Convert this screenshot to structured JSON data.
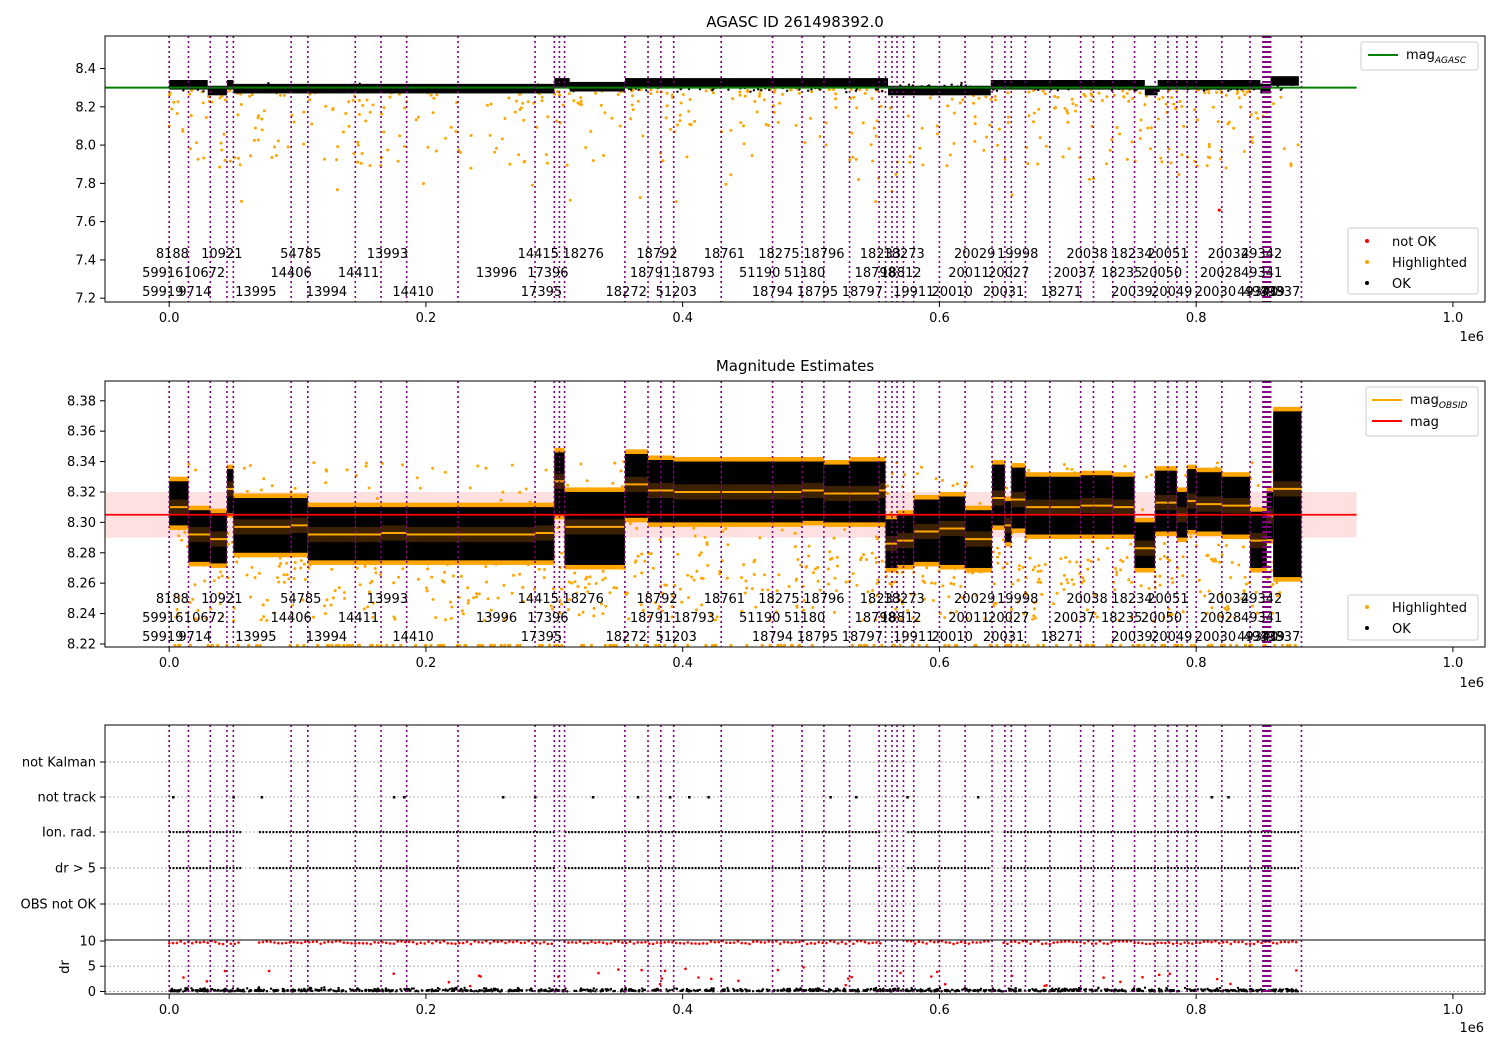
{
  "chart_data": [
    {
      "type": "scatter",
      "title": "AGASC ID 261498392.0",
      "xlim": [
        -50000,
        1025000
      ],
      "ylim": [
        7.18,
        8.57
      ],
      "xticks": [
        0.0,
        0.2,
        0.4,
        0.6,
        0.8,
        1.0
      ],
      "xtick_labels": [
        "0.0",
        "0.2",
        "0.4",
        "0.6",
        "0.8",
        "1.0"
      ],
      "x_offset_label": "1e6",
      "yticks": [
        7.2,
        7.4,
        7.6,
        7.8,
        8.0,
        8.2,
        8.4
      ],
      "ytick_labels": [
        "7.2",
        "7.4",
        "7.6",
        "7.8",
        "8.0",
        "8.2",
        "8.4"
      ],
      "reference_line": {
        "name": "mag",
        "subscript": "AGASC",
        "value": 8.3,
        "color": "#008000",
        "x_end": 925000
      },
      "legend_top": [
        {
          "label": "mag",
          "subscript": "AGASC",
          "color": "#008000",
          "kind": "line"
        }
      ],
      "legend_bottom": [
        {
          "label": "not OK",
          "color": "#ff0000",
          "kind": "dot"
        },
        {
          "label": "Highlighted",
          "color": "#ffa500",
          "kind": "dot"
        },
        {
          "label": "OK",
          "color": "#000000",
          "kind": "dot"
        }
      ],
      "ok_segments": [
        [
          0,
          30000,
          8.32
        ],
        [
          30000,
          45000,
          8.29
        ],
        [
          45000,
          50000,
          8.32
        ],
        [
          50000,
          140000,
          8.3
        ],
        [
          140000,
          300000,
          8.3
        ],
        [
          300000,
          312000,
          8.33
        ],
        [
          312000,
          355000,
          8.31
        ],
        [
          355000,
          560000,
          8.33
        ],
        [
          560000,
          640000,
          8.29
        ],
        [
          640000,
          760000,
          8.32
        ],
        [
          760000,
          770000,
          8.29
        ],
        [
          770000,
          850000,
          8.32
        ],
        [
          850000,
          858000,
          8.3
        ],
        [
          858000,
          880000,
          8.34
        ]
      ],
      "highlighted_spread": [
        7.9,
        8.3
      ],
      "not_ok_points": [
        [
          818000,
          7.66
        ]
      ],
      "obsid_rows": [
        [
          "8188",
          "10921",
          "54785",
          "13993",
          "14415",
          "18276",
          "18792",
          "18761",
          "18275",
          "18796",
          "18233",
          "18273",
          "20029",
          "19998",
          "20038",
          "18234",
          "20051",
          "20032",
          "49342"
        ],
        [
          "59916",
          "10672",
          "14406",
          "14411",
          "13996",
          "17396",
          "18791",
          "18793",
          "51190",
          "51180",
          "18798",
          "18812",
          "20011",
          "20027",
          "20037",
          "18235",
          "20050",
          "20028",
          "49341"
        ],
        [
          "59919",
          "9714",
          "13995",
          "13994",
          "14410",
          "17395",
          "18272",
          "51203",
          "18794",
          "18795",
          "18797",
          "19911",
          "20010",
          "20031",
          "18271",
          "20039",
          "20049",
          "20030",
          "49340",
          "49339",
          "49337"
        ]
      ]
    },
    {
      "type": "scatter",
      "title": "Magnitude Estimates",
      "xlim": [
        -50000,
        1025000
      ],
      "ylim": [
        8.218,
        8.393
      ],
      "xticks": [
        0.0,
        0.2,
        0.4,
        0.6,
        0.8,
        1.0
      ],
      "xtick_labels": [
        "0.0",
        "0.2",
        "0.4",
        "0.6",
        "0.8",
        "1.0"
      ],
      "x_offset_label": "1e6",
      "yticks": [
        8.22,
        8.24,
        8.26,
        8.28,
        8.3,
        8.32,
        8.34,
        8.36,
        8.38
      ],
      "ytick_labels": [
        "8.22",
        "8.24",
        "8.26",
        "8.28",
        "8.30",
        "8.32",
        "8.34",
        "8.36",
        "8.38"
      ],
      "mag_line": {
        "label": "mag",
        "value": 8.305,
        "band": [
          8.29,
          8.32
        ],
        "color": "#ff0000",
        "x_end": 925000
      },
      "legend_top": [
        {
          "label": "mag",
          "subscript": "OBSID",
          "color": "#ffa500",
          "kind": "line"
        },
        {
          "label": "mag",
          "color": "#ff0000",
          "kind": "line"
        }
      ],
      "legend_bottom": [
        {
          "label": "Highlighted",
          "color": "#ffa500",
          "kind": "dot"
        },
        {
          "label": "OK",
          "color": "#000000",
          "kind": "dot"
        }
      ],
      "obsid_segments": [
        [
          0,
          15000,
          8.31,
          8.298,
          8.327
        ],
        [
          15000,
          32000,
          8.292,
          8.274,
          8.308
        ],
        [
          32000,
          45000,
          8.289,
          8.273,
          8.306
        ],
        [
          45000,
          50000,
          8.322,
          8.306,
          8.335
        ],
        [
          50000,
          95000,
          8.297,
          8.28,
          8.316
        ],
        [
          95000,
          108000,
          8.298,
          8.28,
          8.316
        ],
        [
          108000,
          145000,
          8.292,
          8.275,
          8.31
        ],
        [
          145000,
          165000,
          8.292,
          8.275,
          8.31
        ],
        [
          165000,
          185000,
          8.293,
          8.275,
          8.31
        ],
        [
          185000,
          225000,
          8.292,
          8.275,
          8.31
        ],
        [
          225000,
          285000,
          8.292,
          8.275,
          8.31
        ],
        [
          285000,
          300000,
          8.293,
          8.275,
          8.31
        ],
        [
          300000,
          308000,
          8.327,
          8.305,
          8.346
        ],
        [
          308000,
          355000,
          8.297,
          8.272,
          8.32
        ],
        [
          355000,
          373000,
          8.325,
          8.303,
          8.345
        ],
        [
          373000,
          393000,
          8.321,
          8.3,
          8.341
        ],
        [
          393000,
          430000,
          8.32,
          8.3,
          8.34
        ],
        [
          430000,
          470000,
          8.32,
          8.3,
          8.34
        ],
        [
          470000,
          493000,
          8.32,
          8.3,
          8.34
        ],
        [
          493000,
          510000,
          8.321,
          8.301,
          8.34
        ],
        [
          510000,
          530000,
          8.319,
          8.3,
          8.338
        ],
        [
          530000,
          553000,
          8.319,
          8.3,
          8.34
        ],
        [
          553000,
          558000,
          8.321,
          8.3,
          8.34
        ],
        [
          558000,
          567000,
          8.286,
          8.27,
          8.302
        ],
        [
          567000,
          580000,
          8.288,
          8.272,
          8.305
        ],
        [
          580000,
          600000,
          8.294,
          8.274,
          8.315
        ],
        [
          600000,
          620000,
          8.296,
          8.272,
          8.317
        ],
        [
          620000,
          641000,
          8.289,
          8.27,
          8.308
        ],
        [
          641000,
          651000,
          8.316,
          8.298,
          8.338
        ],
        [
          651000,
          656000,
          8.298,
          8.287,
          8.314
        ],
        [
          656000,
          667000,
          8.315,
          8.296,
          8.336
        ],
        [
          667000,
          686000,
          8.31,
          8.292,
          8.33
        ],
        [
          686000,
          710000,
          8.31,
          8.292,
          8.33
        ],
        [
          710000,
          735000,
          8.311,
          8.292,
          8.331
        ],
        [
          735000,
          752000,
          8.31,
          8.292,
          8.33
        ],
        [
          752000,
          768000,
          8.283,
          8.27,
          8.3
        ],
        [
          768000,
          785000,
          8.313,
          8.294,
          8.334
        ],
        [
          785000,
          793000,
          8.305,
          8.29,
          8.32
        ],
        [
          793000,
          800000,
          8.314,
          8.295,
          8.335
        ],
        [
          800000,
          820000,
          8.312,
          8.294,
          8.333
        ],
        [
          820000,
          842000,
          8.311,
          8.292,
          8.33
        ],
        [
          842000,
          855000,
          8.288,
          8.27,
          8.307
        ],
        [
          855000,
          860000,
          8.304,
          8.289,
          8.32
        ],
        [
          860000,
          882000,
          8.322,
          8.264,
          8.373
        ]
      ],
      "obsid_rows": [
        [
          "8188",
          "10921",
          "54785",
          "13993",
          "14415",
          "18276",
          "18792",
          "18761",
          "18275",
          "18796",
          "18233",
          "18273",
          "20029",
          "19998",
          "20038",
          "18234",
          "20051",
          "20032",
          "49342"
        ],
        [
          "59916",
          "10672",
          "14406",
          "14411",
          "13996",
          "17396",
          "18791",
          "18793",
          "51190",
          "51180",
          "18798",
          "18812",
          "20011",
          "20027",
          "20037",
          "18235",
          "20050",
          "20028",
          "49341"
        ],
        [
          "59919",
          "9714",
          "13995",
          "13994",
          "14410",
          "17395",
          "18272",
          "51203",
          "18794",
          "18795",
          "18797",
          "19911",
          "20010",
          "20031",
          "18271",
          "20039",
          "20049",
          "20030",
          "49340",
          "49339",
          "49337"
        ]
      ]
    },
    {
      "type": "scatter",
      "xlim": [
        -50000,
        1025000
      ],
      "xticks": [
        0.0,
        0.2,
        0.4,
        0.6,
        0.8,
        1.0
      ],
      "xtick_labels": [
        "0.0",
        "0.2",
        "0.4",
        "0.6",
        "0.8",
        "1.0"
      ],
      "x_offset_label": "1e6",
      "flag_rows": [
        "not Kalman",
        "not track",
        "Ion. rad.",
        "dr > 5",
        "OBS not OK"
      ],
      "flag_segments": {
        "not track": [
          3000,
          50000,
          72000,
          175000,
          183000,
          260000,
          285000,
          330000,
          365000,
          390000,
          405000,
          420000,
          515000,
          535000,
          575000,
          630000,
          812000,
          825000
        ],
        "Ion. rad.": [
          [
            0,
            55000
          ],
          [
            70000,
            300000
          ],
          [
            308000,
            555000
          ],
          [
            575000,
            640000
          ],
          [
            650000,
            880000
          ]
        ],
        "dr > 5": [
          [
            0,
            55000
          ],
          [
            70000,
            300000
          ],
          [
            308000,
            555000
          ],
          [
            575000,
            640000
          ],
          [
            650000,
            880000
          ]
        ]
      },
      "dr_ylabel": "dr",
      "dr_yticks": [
        0,
        5,
        10
      ],
      "dr_ytick_labels": [
        "0",
        "5",
        "10"
      ],
      "dr_ylim": [
        -0.5,
        10.2
      ],
      "dr_threshold": 10
    }
  ],
  "obsid_boundaries": [
    0,
    15000,
    32000,
    45000,
    50000,
    95000,
    108000,
    145000,
    165000,
    185000,
    225000,
    285000,
    300000,
    304000,
    308000,
    355000,
    373000,
    383000,
    393000,
    430000,
    470000,
    493000,
    510000,
    530000,
    553000,
    558000,
    563000,
    567000,
    572000,
    580000,
    600000,
    620000,
    641000,
    651000,
    656000,
    667000,
    686000,
    710000,
    720000,
    735000,
    752000,
    768000,
    778000,
    785000,
    793000,
    800000,
    820000,
    842000,
    852000,
    853000,
    854000,
    855000,
    856000,
    857000,
    858000,
    882000
  ]
}
